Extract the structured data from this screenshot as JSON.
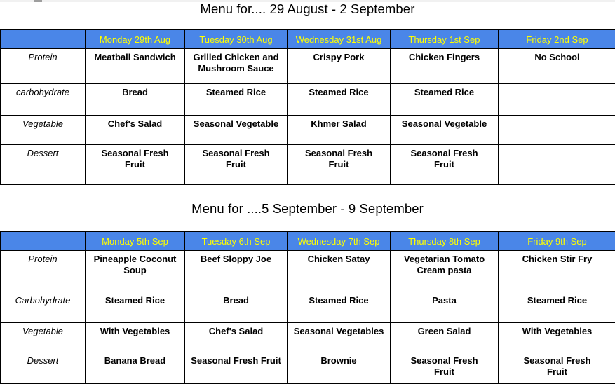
{
  "colors": {
    "header_bg": "#4a86e8",
    "header_text": "#ffff00",
    "border": "#000000",
    "page_bg": "#ffffff"
  },
  "scrollbar": {
    "thumb_icon": "scrollbar-thumb"
  },
  "menus": [
    {
      "title": "Menu for.... 29 August - 2 September",
      "days": [
        "",
        "Monday 29th Aug",
        "Tuesday 30th Aug",
        "Wednesday 31st Aug",
        "Thursday 1st Sep",
        "Friday 2nd Sep"
      ],
      "rows": [
        {
          "label": "Protein",
          "cells": [
            "Meatball Sandwich",
            "Grilled Chicken and\nMushroom Sauce",
            "Crispy Pork",
            "Chicken Fingers",
            "No School"
          ]
        },
        {
          "label": "carbohydrate",
          "cells": [
            "Bread",
            "Steamed Rice",
            "Steamed Rice",
            "Steamed Rice",
            ""
          ]
        },
        {
          "label": "Vegetable",
          "cells": [
            "Chef's Salad",
            "Seasonal Vegetable",
            "Khmer Salad",
            "Seasonal Vegetable",
            ""
          ]
        },
        {
          "label": "Dessert",
          "cells": [
            "Seasonal Fresh\nFruit",
            "Seasonal Fresh\nFruit",
            "Seasonal Fresh\nFruit",
            "Seasonal Fresh\nFruit",
            ""
          ]
        }
      ]
    },
    {
      "title": "Menu for ....5 September - 9 September",
      "days": [
        "",
        "Monday 5th Sep",
        "Tuesday 6th Sep",
        "Wednesday 7th Sep",
        "Thursday 8th Sep",
        "Friday 9th Sep"
      ],
      "rows": [
        {
          "label": "Protein",
          "cells": [
            "Pineapple Coconut\nSoup",
            "Beef Sloppy Joe",
            "Chicken Satay",
            "Vegetarian Tomato\nCream pasta",
            "Chicken Stir Fry"
          ]
        },
        {
          "label": "Carbohydrate",
          "cells": [
            "Steamed Rice",
            "Bread",
            "Steamed Rice",
            "Pasta",
            "Steamed Rice"
          ]
        },
        {
          "label": "Vegetable",
          "cells": [
            "With Vegetables",
            "Chef's Salad",
            "Seasonal Vegetables",
            "Green Salad",
            "With Vegetables"
          ]
        },
        {
          "label": "Dessert",
          "cells": [
            "Banana Bread",
            "Seasonal Fresh Fruit",
            "Brownie",
            "Seasonal Fresh\nFruit",
            "Seasonal Fresh\nFruit"
          ]
        }
      ]
    }
  ]
}
